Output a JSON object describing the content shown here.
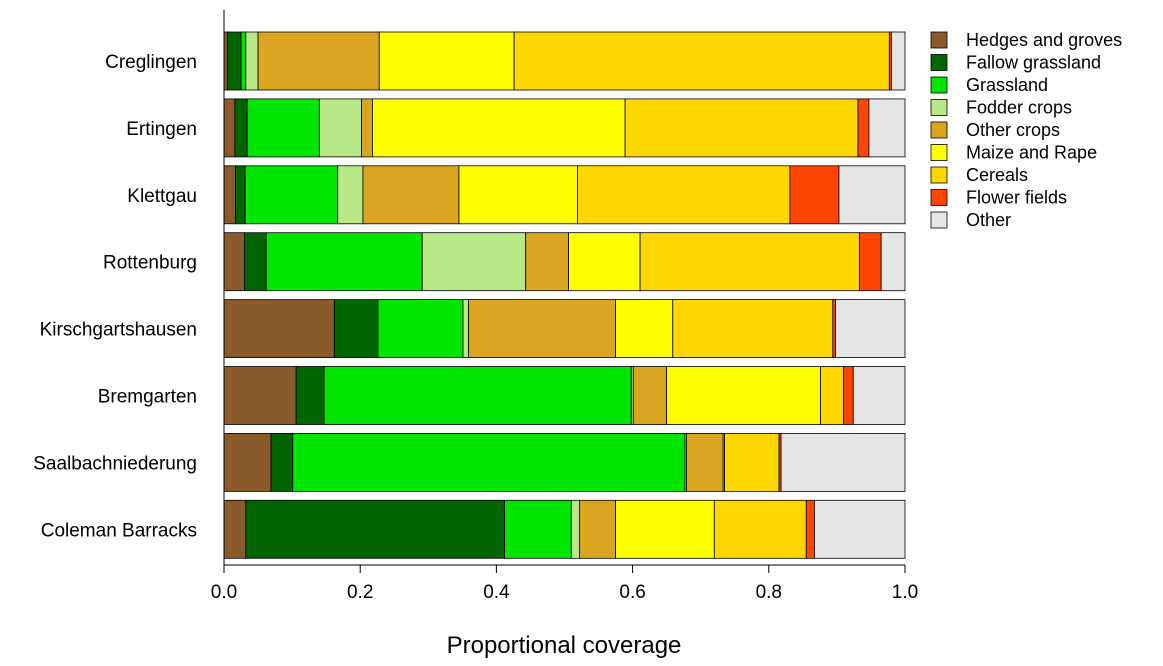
{
  "chart_data": {
    "type": "bar",
    "orientation": "horizontal",
    "stacked": true,
    "title": "",
    "xlabel": "Proportional coverage",
    "ylabel": "",
    "xlim": [
      0,
      1
    ],
    "x_ticks": [
      "0.0",
      "0.2",
      "0.4",
      "0.6",
      "0.8",
      "1.0"
    ],
    "x_tick_values": [
      0,
      0.2,
      0.4,
      0.6,
      0.8,
      1.0
    ],
    "grid": false,
    "legend_position": "top-right",
    "categories": [
      "Creglingen",
      "Ertingen",
      "Klettgau",
      "Rottenburg",
      "Kirschgartshausen",
      "Bremgarten",
      "Saalbachniederung",
      "Coleman Barracks"
    ],
    "series": [
      {
        "name": "Hedges and groves",
        "color": "#8B5A2B",
        "values": [
          0.005,
          0.016,
          0.017,
          0.03,
          0.162,
          0.106,
          0.069,
          0.032
        ]
      },
      {
        "name": "Fallow grassland",
        "color": "#006400",
        "values": [
          0.02,
          0.018,
          0.014,
          0.032,
          0.064,
          0.041,
          0.032,
          0.38
        ]
      },
      {
        "name": "Grassland",
        "color": "#00E600",
        "values": [
          0.007,
          0.106,
          0.136,
          0.229,
          0.125,
          0.451,
          0.576,
          0.098
        ]
      },
      {
        "name": "Fodder crops",
        "color": "#B8E986",
        "values": [
          0.018,
          0.062,
          0.037,
          0.152,
          0.008,
          0.003,
          0.002,
          0.012
        ]
      },
      {
        "name": "Other crops",
        "color": "#DAA520",
        "values": [
          0.178,
          0.016,
          0.141,
          0.063,
          0.216,
          0.049,
          0.054,
          0.053
        ]
      },
      {
        "name": "Maize and Rape",
        "color": "#FFFF00",
        "values": [
          0.198,
          0.371,
          0.174,
          0.105,
          0.084,
          0.226,
          0.002,
          0.145
        ]
      },
      {
        "name": "Cereals",
        "color": "#FFD700",
        "values": [
          0.551,
          0.342,
          0.312,
          0.322,
          0.235,
          0.034,
          0.08,
          0.135
        ]
      },
      {
        "name": "Flower fields",
        "color": "#FF4500",
        "values": [
          0.003,
          0.016,
          0.072,
          0.032,
          0.004,
          0.014,
          0.003,
          0.012
        ]
      },
      {
        "name": "Other",
        "color": "#E5E5E5",
        "values": [
          0.02,
          0.053,
          0.097,
          0.035,
          0.102,
          0.076,
          0.182,
          0.133
        ]
      }
    ]
  }
}
